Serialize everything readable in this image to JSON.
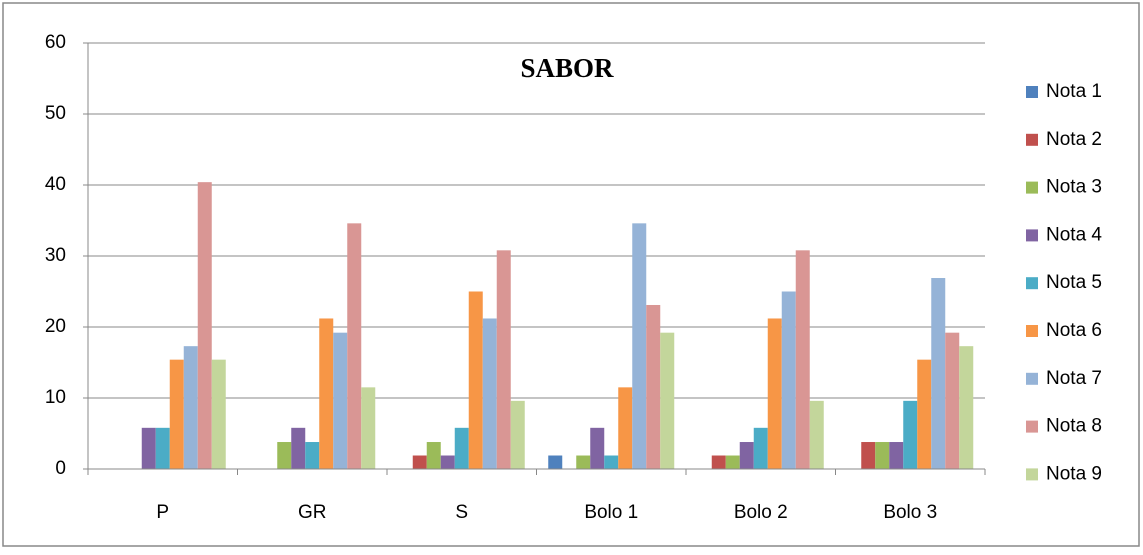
{
  "chart_data": {
    "type": "bar",
    "title": "SABOR",
    "categories": [
      "P",
      "GR",
      "S",
      "Bolo 1",
      "Bolo 2",
      "Bolo 3"
    ],
    "series": [
      {
        "name": "Nota 1",
        "color": "#4f81bd",
        "values": [
          0,
          0,
          0,
          1.9,
          0,
          0
        ]
      },
      {
        "name": "Nota 2",
        "color": "#c0504d",
        "values": [
          0,
          0,
          1.9,
          0,
          1.9,
          3.8
        ]
      },
      {
        "name": "Nota 3",
        "color": "#9bbb59",
        "values": [
          0,
          3.8,
          3.8,
          1.9,
          1.9,
          3.8
        ]
      },
      {
        "name": "Nota 4",
        "color": "#8064a2",
        "values": [
          5.8,
          5.8,
          1.9,
          5.8,
          3.8,
          3.8
        ]
      },
      {
        "name": "Nota 5",
        "color": "#4bacc6",
        "values": [
          5.8,
          3.8,
          5.8,
          1.9,
          5.8,
          9.6
        ]
      },
      {
        "name": "Nota 6",
        "color": "#f79646",
        "values": [
          15.4,
          21.2,
          25,
          11.5,
          21.2,
          15.4
        ]
      },
      {
        "name": "Nota 7",
        "color": "#95b3d7",
        "values": [
          17.3,
          19.2,
          21.2,
          34.6,
          25,
          26.9
        ]
      },
      {
        "name": "Nota 8",
        "color": "#d99694",
        "values": [
          40.4,
          34.6,
          30.8,
          23.1,
          30.8,
          19.2
        ]
      },
      {
        "name": "Nota 9",
        "color": "#c3d69b",
        "values": [
          15.4,
          11.5,
          9.6,
          19.2,
          9.6,
          17.3
        ]
      }
    ],
    "ylim": [
      0,
      60
    ],
    "yticks": [
      0,
      10,
      20,
      30,
      40,
      50,
      60
    ],
    "grid": true,
    "legend": "right"
  }
}
